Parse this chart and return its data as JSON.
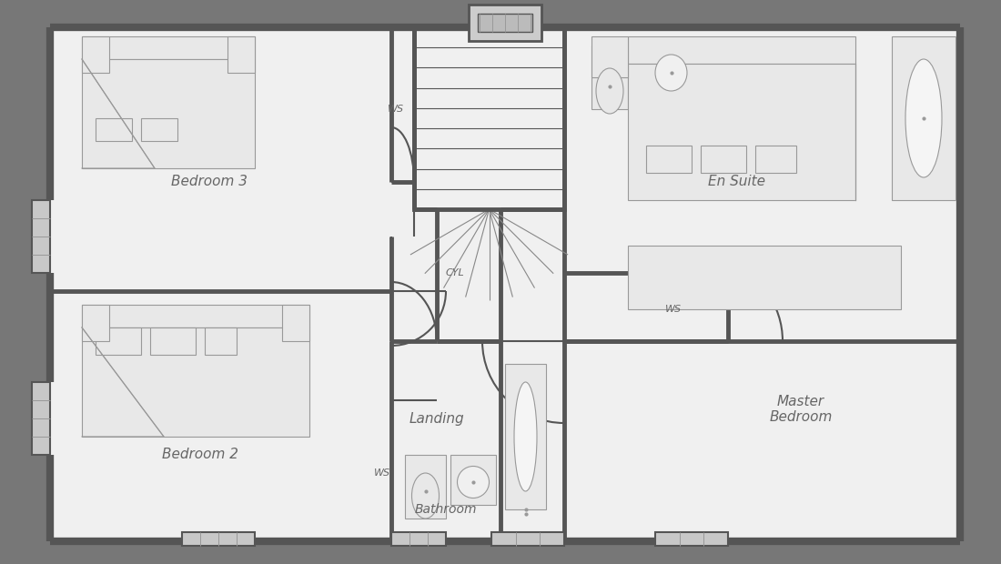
{
  "bg_color": "#777777",
  "wall_color": "#555555",
  "room_bg": "#f0f0f0",
  "thin_line": "#888888",
  "text_color": "#666666",
  "outer_wall_lw": 6,
  "inner_wall_lw": 3.5,
  "thin_lw": 1.0,
  "furniture_lw": 0.8,
  "rooms": {
    "bedroom3": "Bedroom 3",
    "bedroom2": "Bedroom 2",
    "landing": "Landing",
    "ensuite": "En Suite",
    "master": "Master\nBedroom",
    "bathroom": "Bathroom",
    "cyl": "CYL"
  }
}
